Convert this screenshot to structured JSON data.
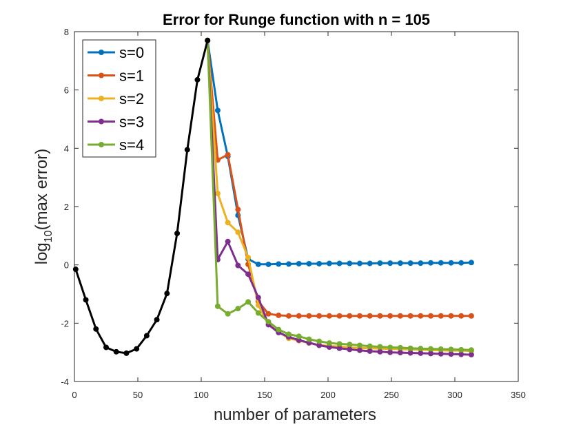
{
  "chart_data": {
    "type": "line",
    "title": "Error for Runge function with n = 105",
    "xlabel": "number of parameters",
    "ylabel_prefix": "log",
    "ylabel_sub": "10",
    "ylabel_suffix": "(max error)",
    "xlim": [
      0,
      350
    ],
    "ylim": [
      -4,
      8
    ],
    "xticks": [
      0,
      50,
      100,
      150,
      200,
      250,
      300,
      350
    ],
    "yticks": [
      -4,
      -2,
      0,
      2,
      4,
      6,
      8
    ],
    "xtick_labels": [
      "0",
      "50",
      "100",
      "150",
      "200",
      "250",
      "300",
      "350"
    ],
    "ytick_labels": [
      "-4",
      "-2",
      "0",
      "2",
      "4",
      "6",
      "8"
    ],
    "grid": false,
    "legend_position": "top-left",
    "base_series": {
      "color": "#000000",
      "x": [
        1,
        9,
        17,
        25,
        33,
        41,
        49,
        57,
        65,
        73,
        81,
        89,
        97,
        105
      ],
      "y": [
        -0.15,
        -1.2,
        -2.2,
        -2.83,
        -2.98,
        -3.03,
        -2.88,
        -2.43,
        -1.88,
        -0.98,
        1.08,
        3.95,
        6.35,
        7.7
      ]
    },
    "series": [
      {
        "name": "s=0",
        "color": "#0072BD",
        "x": [
          105,
          113,
          121,
          129,
          137,
          145,
          153,
          161,
          169,
          177,
          185,
          193,
          201,
          209,
          217,
          225,
          233,
          241,
          249,
          257,
          265,
          273,
          281,
          289,
          297,
          305,
          313
        ],
        "y": [
          7.7,
          5.3,
          3.72,
          1.7,
          0.2,
          0.02,
          0.02,
          0.03,
          0.03,
          0.04,
          0.04,
          0.04,
          0.05,
          0.05,
          0.05,
          0.05,
          0.05,
          0.06,
          0.06,
          0.06,
          0.06,
          0.06,
          0.07,
          0.07,
          0.07,
          0.07,
          0.08
        ]
      },
      {
        "name": "s=1",
        "color": "#D95319",
        "x": [
          105,
          113,
          121,
          129,
          137,
          145,
          153,
          161,
          169,
          177,
          185,
          193,
          201,
          209,
          217,
          225,
          233,
          241,
          249,
          257,
          265,
          273,
          281,
          289,
          297,
          305,
          313
        ],
        "y": [
          7.7,
          3.6,
          3.78,
          1.9,
          0.02,
          -1.25,
          -1.68,
          -1.73,
          -1.75,
          -1.75,
          -1.75,
          -1.75,
          -1.75,
          -1.75,
          -1.75,
          -1.75,
          -1.75,
          -1.75,
          -1.75,
          -1.75,
          -1.75,
          -1.75,
          -1.75,
          -1.75,
          -1.75,
          -1.75,
          -1.75
        ]
      },
      {
        "name": "s=2",
        "color": "#EDB120",
        "x": [
          105,
          113,
          121,
          129,
          137,
          145,
          153,
          161,
          169,
          177,
          185,
          193,
          201,
          209,
          217,
          225,
          233,
          241,
          249,
          257,
          265,
          273,
          281,
          289,
          297,
          305,
          313
        ],
        "y": [
          7.7,
          2.45,
          1.45,
          1.12,
          0.25,
          -1.38,
          -2.05,
          -2.3,
          -2.52,
          -2.6,
          -2.68,
          -2.75,
          -2.78,
          -2.8,
          -2.83,
          -2.85,
          -2.86,
          -2.87,
          -2.88,
          -2.89,
          -2.9,
          -2.91,
          -2.92,
          -2.93,
          -2.94,
          -2.94,
          -2.95
        ]
      },
      {
        "name": "s=3",
        "color": "#7E2F8E",
        "x": [
          105,
          113,
          121,
          129,
          137,
          145,
          153,
          161,
          169,
          177,
          185,
          193,
          201,
          209,
          217,
          225,
          233,
          241,
          249,
          257,
          265,
          273,
          281,
          289,
          297,
          305,
          313
        ],
        "y": [
          7.7,
          0.18,
          0.8,
          -0.02,
          -0.32,
          -1.12,
          -2.05,
          -2.32,
          -2.47,
          -2.58,
          -2.67,
          -2.76,
          -2.82,
          -2.86,
          -2.9,
          -2.93,
          -2.96,
          -2.98,
          -3.0,
          -3.01,
          -3.02,
          -3.03,
          -3.04,
          -3.05,
          -3.06,
          -3.07,
          -3.08
        ]
      },
      {
        "name": "s=4",
        "color": "#77AC30",
        "x": [
          105,
          113,
          121,
          129,
          137,
          145,
          153,
          161,
          169,
          177,
          185,
          193,
          201,
          209,
          217,
          225,
          233,
          241,
          249,
          257,
          265,
          273,
          281,
          289,
          297,
          305,
          313
        ],
        "y": [
          7.7,
          -1.42,
          -1.68,
          -1.5,
          -1.27,
          -1.65,
          -1.95,
          -2.22,
          -2.38,
          -2.45,
          -2.55,
          -2.62,
          -2.68,
          -2.71,
          -2.73,
          -2.76,
          -2.79,
          -2.81,
          -2.83,
          -2.84,
          -2.86,
          -2.87,
          -2.88,
          -2.89,
          -2.9,
          -2.91,
          -2.92
        ]
      }
    ]
  }
}
